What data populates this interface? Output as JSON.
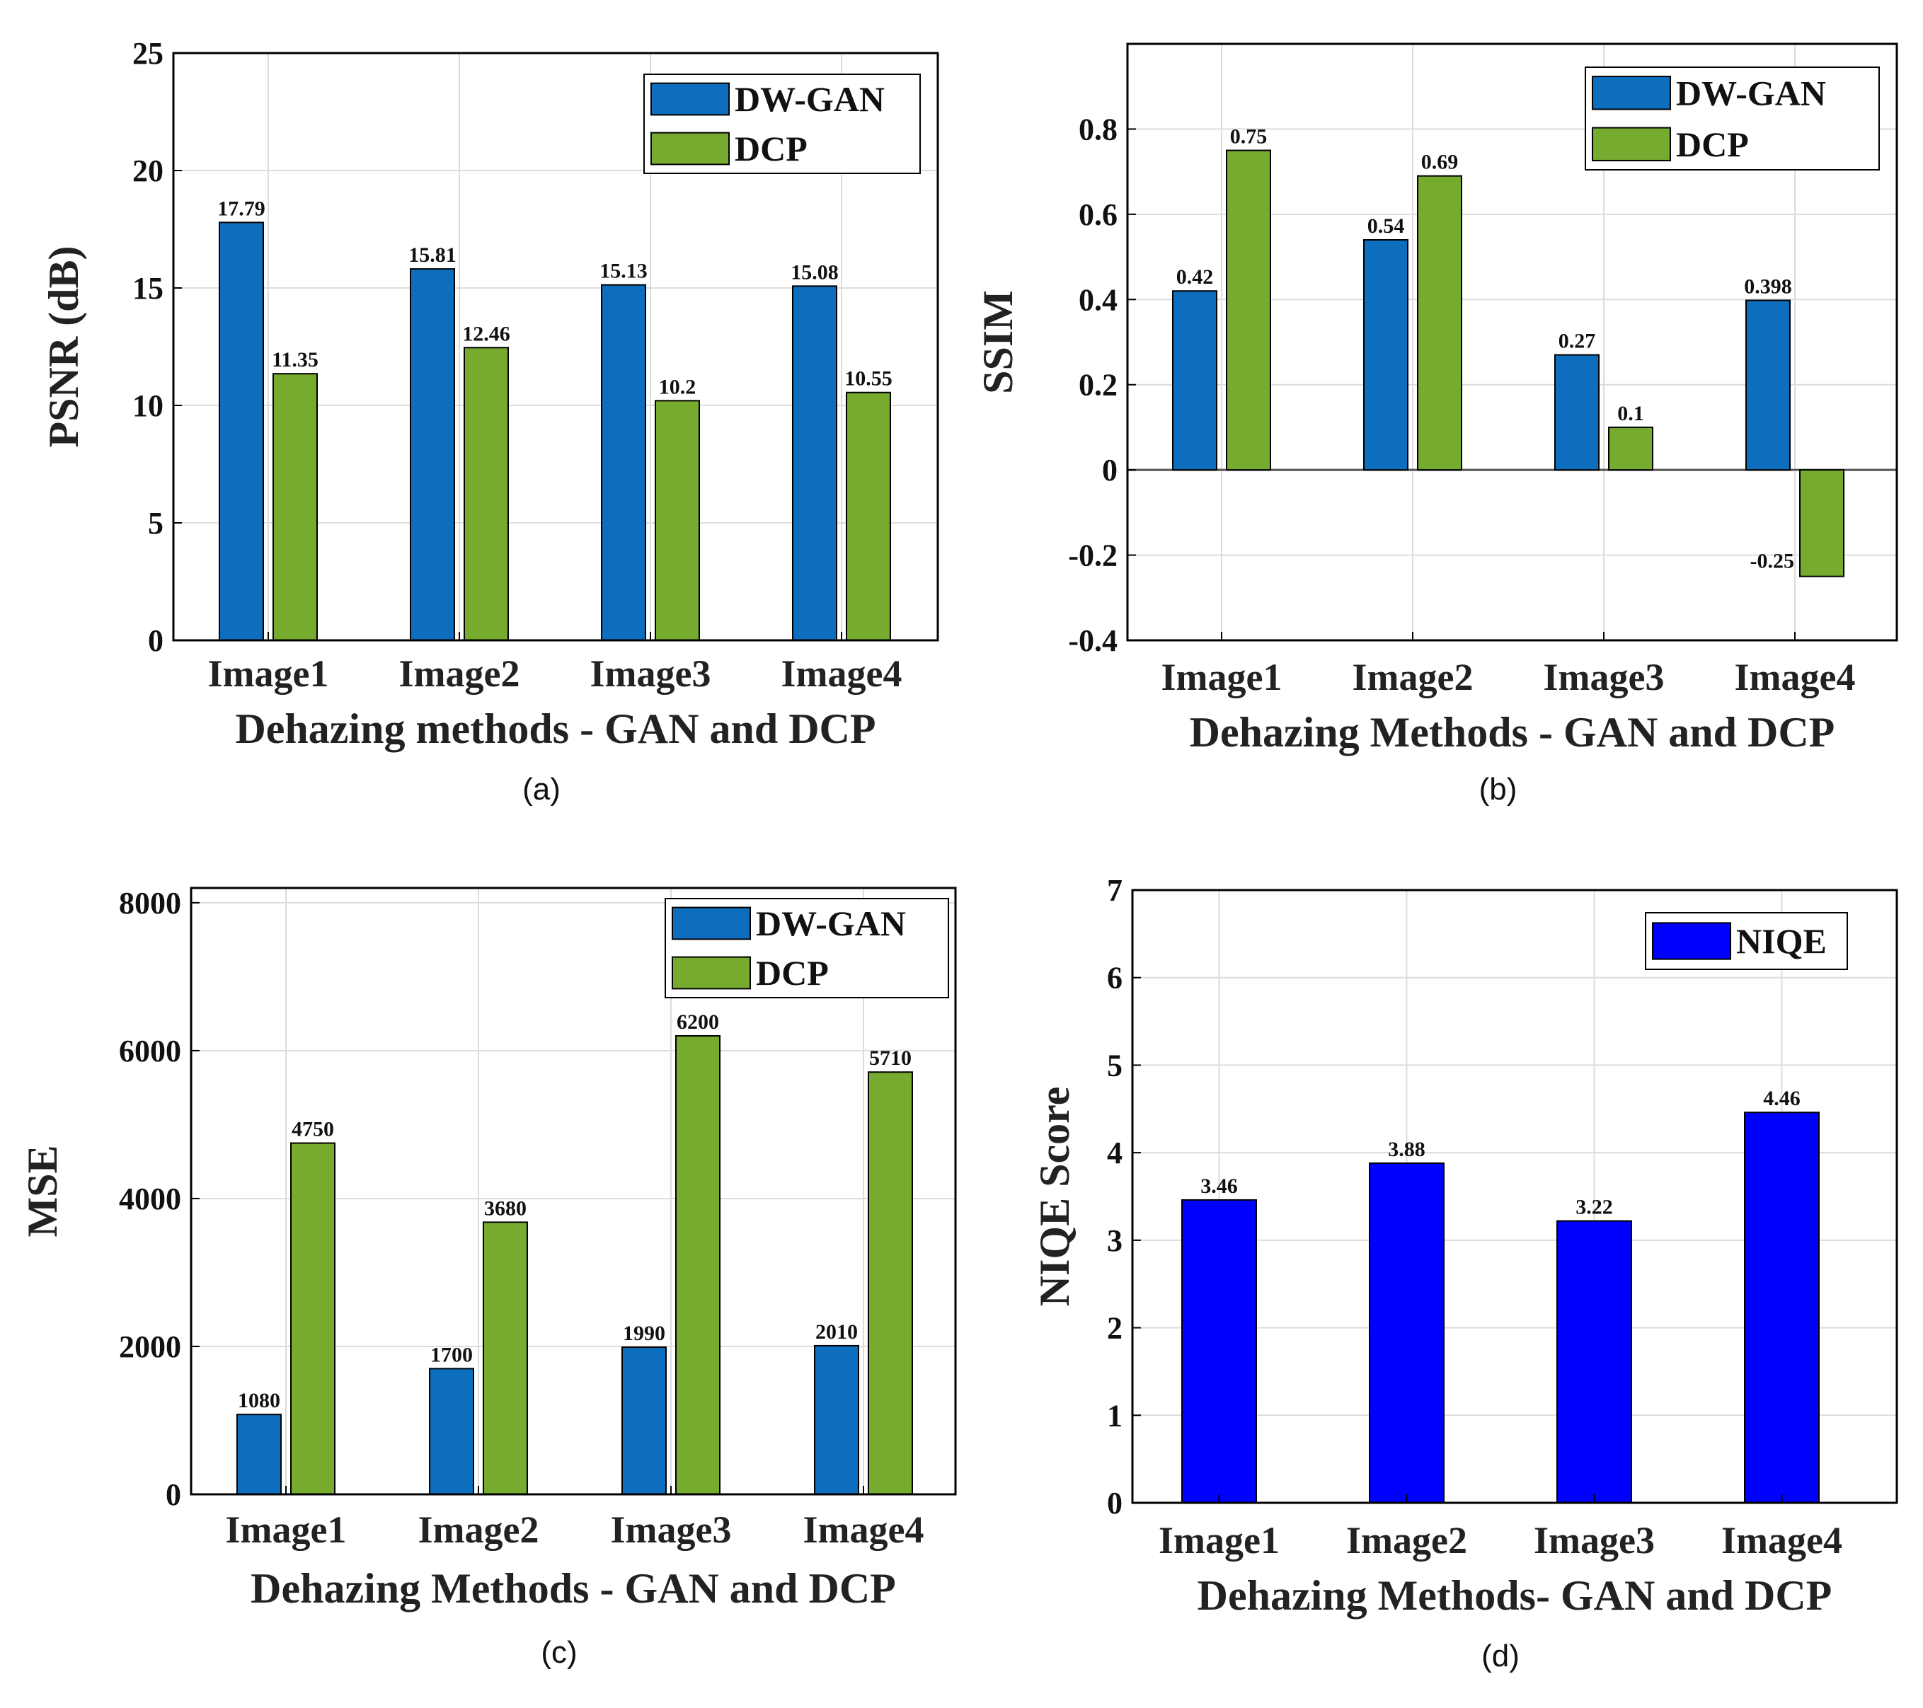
{
  "colors": {
    "dwgan": "#0d6ebd",
    "dcp": "#76ab2f",
    "niqe": "#0000ff",
    "grid": "#dcdcdc",
    "axis": "#000000"
  },
  "chart_data": [
    {
      "id": "a",
      "type": "bar",
      "caption": "(a)",
      "categories": [
        "Image1",
        "Image2",
        "Image3",
        "Image4"
      ],
      "series": [
        {
          "name": "DW-GAN",
          "values": [
            17.79,
            15.81,
            15.13,
            15.08
          ],
          "labels": [
            "17.79",
            "15.81",
            "15.13",
            "15.08"
          ],
          "color": "#0d6ebd"
        },
        {
          "name": "DCP",
          "values": [
            11.35,
            12.46,
            10.2,
            10.55
          ],
          "labels": [
            "11.35",
            "12.46",
            "10.2",
            "10.55"
          ],
          "color": "#76ab2f"
        }
      ],
      "xlabel": "Dehazing methods - GAN and DCP",
      "ylabel": "PSNR (dB)",
      "ylim": [
        0,
        25
      ],
      "yticks": [
        0,
        5,
        10,
        15,
        20,
        25
      ],
      "ytick_labels": [
        "0",
        "5",
        "10",
        "15",
        "20",
        "25"
      ],
      "legend": "top-right",
      "grid": true
    },
    {
      "id": "b",
      "type": "bar",
      "caption": "(b)",
      "categories": [
        "Image1",
        "Image2",
        "Image3",
        "Image4"
      ],
      "series": [
        {
          "name": "DW-GAN",
          "values": [
            0.42,
            0.54,
            0.27,
            0.398
          ],
          "labels": [
            "0.42",
            "0.54",
            "0.27",
            "0.398"
          ],
          "color": "#0d6ebd"
        },
        {
          "name": "DCP",
          "values": [
            0.75,
            0.69,
            0.1,
            -0.25
          ],
          "labels": [
            "0.75",
            "0.69",
            "0.1",
            "-0.25"
          ],
          "color": "#76ab2f"
        }
      ],
      "xlabel": "Dehazing Methods - GAN and DCP",
      "ylabel": "SSIM",
      "ylim": [
        -0.4,
        1.0
      ],
      "yticks": [
        -0.4,
        -0.2,
        0,
        0.2,
        0.4,
        0.6,
        0.8
      ],
      "ytick_labels": [
        "-0.4",
        "-0.2",
        "0",
        "0.2",
        "0.4",
        "0.6",
        "0.8"
      ],
      "legend": "top-right",
      "grid": true
    },
    {
      "id": "c",
      "type": "bar",
      "caption": "(c)",
      "categories": [
        "Image1",
        "Image2",
        "Image3",
        "Image4"
      ],
      "series": [
        {
          "name": "DW-GAN",
          "values": [
            1080,
            1700,
            1990,
            2010
          ],
          "labels": [
            "1080",
            "1700",
            "1990",
            "2010"
          ],
          "color": "#0d6ebd"
        },
        {
          "name": "DCP",
          "values": [
            4750,
            3680,
            6200,
            5710
          ],
          "labels": [
            "4750",
            "3680",
            "6200",
            "5710"
          ],
          "color": "#76ab2f"
        }
      ],
      "xlabel": "Dehazing Methods - GAN and DCP",
      "ylabel": "MSE",
      "ylim": [
        0,
        8200
      ],
      "yticks": [
        0,
        2000,
        4000,
        6000,
        8000
      ],
      "ytick_labels": [
        "0",
        "2000",
        "4000",
        "6000",
        "8000"
      ],
      "legend": "top-right",
      "grid": true
    },
    {
      "id": "d",
      "type": "bar",
      "caption": "(d)",
      "categories": [
        "Image1",
        "Image2",
        "Image3",
        "Image4"
      ],
      "series": [
        {
          "name": "NIQE",
          "values": [
            3.46,
            3.88,
            3.22,
            4.46
          ],
          "labels": [
            "3.46",
            "3.88",
            "3.22",
            "4.46"
          ],
          "color": "#0000ff"
        }
      ],
      "xlabel": "Dehazing Methods- GAN and DCP",
      "ylabel": "NIQE Score",
      "ylim": [
        0,
        7
      ],
      "yticks": [
        0,
        1,
        2,
        3,
        4,
        5,
        6,
        7
      ],
      "ytick_labels": [
        "0",
        "1",
        "2",
        "3",
        "4",
        "5",
        "6",
        "7"
      ],
      "legend": "top-right",
      "grid": true
    }
  ]
}
